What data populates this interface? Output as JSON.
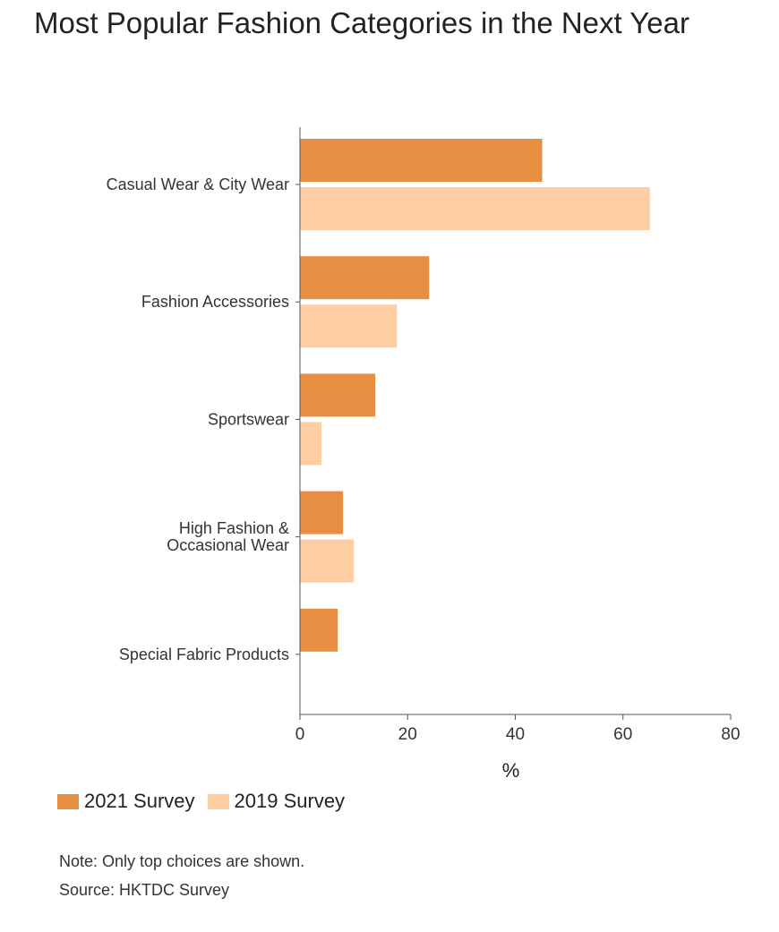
{
  "chart_data": {
    "type": "bar",
    "orientation": "horizontal",
    "title": "Most Popular Fashion Categories in the Next Year",
    "xlabel": "%",
    "ylabel": "",
    "categories": [
      [
        "Casual Wear & City Wear"
      ],
      [
        "Fashion Accessories"
      ],
      [
        "Sportswear"
      ],
      [
        "High Fashion &",
        "Occasional Wear"
      ],
      [
        "Special Fabric Products"
      ]
    ],
    "series": [
      {
        "name": "2021 Survey",
        "color": "#E88E42",
        "values": [
          45,
          24,
          14,
          8,
          7
        ]
      },
      {
        "name": "2019 Survey",
        "color": "#FFCDA3",
        "values": [
          65,
          18,
          4,
          10,
          0
        ]
      }
    ],
    "xlim": [
      0,
      80
    ],
    "xticks": [
      0,
      20,
      40,
      60,
      80
    ],
    "grid": false,
    "legend_position": "bottom-left"
  },
  "notes": {
    "note": "Note: Only top choices are shown.",
    "source": "Source: HKTDC Survey"
  }
}
